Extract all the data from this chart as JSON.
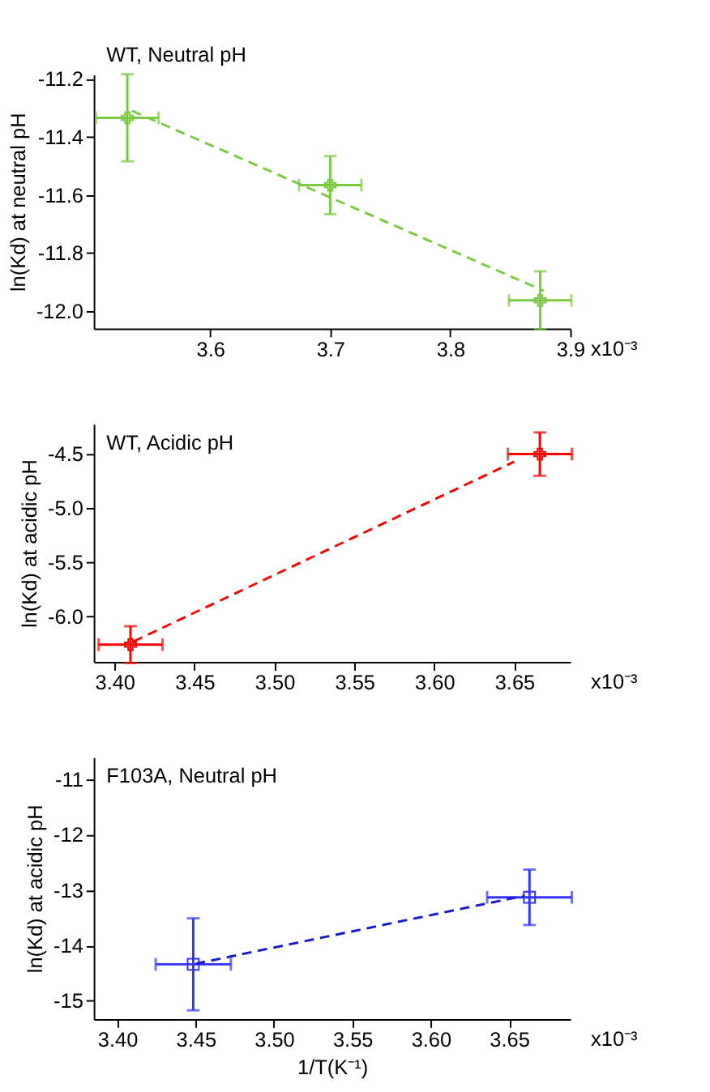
{
  "chart_data": [
    {
      "type": "scatter",
      "title": "WT, Neutral pH",
      "ylabel": "ln(Kd) at neutral pH",
      "xlim": [
        3.503,
        3.9
      ],
      "ylim": [
        -12.06,
        -11.185
      ],
      "xticks": [
        3.6,
        3.7,
        3.8,
        3.9
      ],
      "yticks": [
        -11.2,
        -11.4,
        -11.6,
        -11.8,
        {
          "value": -12,
          "label": "-12.0"
        }
      ],
      "grid": false,
      "annotations": [
        "x10⁻³"
      ],
      "series": [
        {
          "color": "#7ac943",
          "marker": "cross",
          "x": [
            3.531,
            3.7,
            3.875
          ],
          "values": [
            -11.334,
            -11.566,
            -11.963
          ],
          "errors": [
            0.15,
            0.1,
            0.1
          ],
          "xerrors": [
            0.026,
            0.026,
            0.026
          ]
        },
        {
          "type": "line",
          "color": "#7ac943",
          "line_style": "dashed",
          "x": [
            3.535,
            3.878
          ],
          "values": [
            -11.31,
            -11.93
          ]
        }
      ]
    },
    {
      "type": "scatter",
      "title": "WT, Acidic pH",
      "ylabel": "ln(Kd) at acidic pH",
      "xlim": [
        3.387,
        3.685
      ],
      "ylim": [
        -6.42,
        -4.22
      ],
      "xticks": [
        {
          "value": 3.4,
          "label": "3.40"
        },
        3.45,
        {
          "value": 3.5,
          "label": "3.50"
        },
        3.55,
        {
          "value": 3.6,
          "label": "3.60"
        },
        3.65
      ],
      "yticks": [
        -4.5,
        {
          "value": -5,
          "label": "-5.0"
        },
        -5.5,
        {
          "value": -6,
          "label": "-6.0"
        }
      ],
      "grid": false,
      "annotations": [
        "x10⁻³"
      ],
      "series": [
        {
          "color": "#ff0000",
          "marker": "cross",
          "x": [
            3.41,
            3.666
          ],
          "values": [
            -6.26,
            -4.5
          ],
          "errors": [
            0.17,
            0.2
          ],
          "xerrors": [
            0.02,
            0.02
          ]
        },
        {
          "type": "line",
          "color": "#ff0000",
          "line_style": "dashed",
          "x": [
            3.412,
            3.65
          ],
          "values": [
            -6.23,
            -4.57
          ]
        }
      ]
    },
    {
      "type": "scatter",
      "title": "F103A, Neutral pH",
      "ylabel": "ln(Kd) at acidic pH",
      "xlabel": "1/T(K⁻¹)",
      "xlim": [
        3.385,
        3.689
      ],
      "ylim": [
        -15.33,
        -10.6
      ],
      "xticks": [
        {
          "value": 3.4,
          "label": "3.40"
        },
        3.45,
        {
          "value": 3.5,
          "label": "3.50"
        },
        3.55,
        {
          "value": 3.6,
          "label": "3.60"
        },
        3.65
      ],
      "yticks": [
        -11,
        -12,
        -13,
        -14,
        -15
      ],
      "grid": false,
      "annotations": [
        "x10⁻³"
      ],
      "series": [
        {
          "color": "#3333ff",
          "marker": "square",
          "x": [
            3.4485,
            3.663
          ],
          "values": [
            -14.34,
            -13.13
          ],
          "errors": [
            0.83,
            0.5
          ],
          "xerrors": [
            0.024,
            0.027
          ]
        },
        {
          "type": "line",
          "color": "#1a1acc",
          "line_style": "dashed",
          "x": [
            3.45,
            3.66
          ],
          "values": [
            -14.33,
            -13.1
          ]
        }
      ]
    }
  ]
}
